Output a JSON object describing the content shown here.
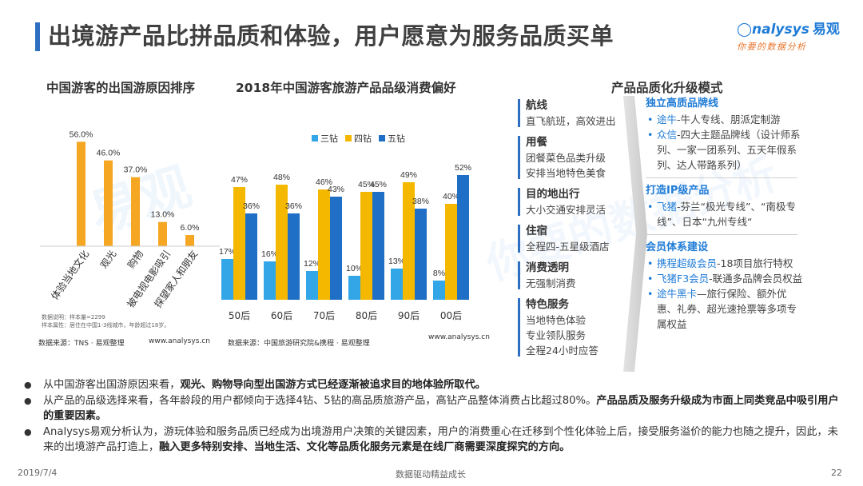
{
  "header": {
    "title": "出境游产品比拼品质和体验，用户愿意为服务品质买单",
    "logo_en": "nalysys",
    "logo_cn": "易观",
    "logo_sub": "你要的数据分析"
  },
  "sections": {
    "left_title": "中国游客的出国游原因排序",
    "middle_title": "2018年中国游客旅游产品品级消费偏好",
    "right_title": "产品品质化升级模式"
  },
  "colors": {
    "accent": "#2e6fc2",
    "bar_orange": "#f5a623",
    "bar_light_blue": "#33a6e8",
    "bar_gold": "#f5b800",
    "bar_dark_blue": "#1f6fc6"
  },
  "chart_data": [
    {
      "type": "bar",
      "title": "中国游客的出国游原因排序",
      "categories": [
        "体验当地文化",
        "观光",
        "购物",
        "被电视电影吸引",
        "探望家人和朋友"
      ],
      "values": [
        56.0,
        46.0,
        37.0,
        13.0,
        6.0
      ],
      "value_labels": [
        "56.0%",
        "46.0%",
        "37.0%",
        "13.0%",
        "6.0%"
      ],
      "ylim": [
        0,
        60
      ],
      "grid": false,
      "note_lines": [
        "数据说明：样本量=2299",
        "样本属性：居住在中国1-3线城市，年龄超过18岁。"
      ],
      "source": "数据来源：TNS · 易观整理",
      "site": "www.analysys.cn"
    },
    {
      "type": "bar",
      "title": "2018年中国游客旅游产品品级消费偏好",
      "categories": [
        "50后",
        "60后",
        "70后",
        "80后",
        "90后",
        "00后"
      ],
      "series": [
        {
          "name": "三钻",
          "values": [
            17,
            16,
            12,
            10,
            13,
            8
          ]
        },
        {
          "name": "四钻",
          "values": [
            47,
            48,
            46,
            45,
            49,
            40
          ]
        },
        {
          "name": "五钻",
          "values": [
            36,
            36,
            43,
            45,
            38,
            52
          ]
        }
      ],
      "ylim": [
        0,
        55
      ],
      "legend": "top",
      "grid": false,
      "source": "数据来源：中国旅游研究院&携程 · 易观整理",
      "site": "www.analysys.cn"
    }
  ],
  "middle_list": [
    {
      "head": "航线",
      "lines": [
        "直飞航班，高效进出"
      ]
    },
    {
      "head": "用餐",
      "lines": [
        "团餐菜色品类升级",
        "安排当地特色美食"
      ]
    },
    {
      "head": "目的地出行",
      "lines": [
        "大小交通安排灵活"
      ]
    },
    {
      "head": "住宿",
      "lines": [
        "全程四-五星级酒店"
      ]
    },
    {
      "head": "消费透明",
      "lines": [
        "无强制消费"
      ]
    },
    {
      "head": "特色服务",
      "lines": [
        "当地特色体验",
        "专业领队服务",
        "全程24小时应答"
      ]
    }
  ],
  "right_panel": {
    "groups": [
      {
        "head": "独立高质品牌线",
        "items": [
          {
            "hl": "途牛",
            "text": "-牛人专线、朋派定制游"
          },
          {
            "hl": "众信",
            "text": "-四大主题品牌线（设计师系列、一家一团系列、五天年假系列、达人带路系列）"
          }
        ]
      },
      {
        "head": "打造IP级产品",
        "items": [
          {
            "hl": "飞猪",
            "text": "-芬兰“极光专线”、“南极专线”、日本“九州专线“"
          }
        ]
      },
      {
        "head": "会员体系建设",
        "items": [
          {
            "hl": "携程超级会员",
            "text": "-18项目旅行特权"
          },
          {
            "hl": "飞猪F3会员",
            "text": "-联通多品牌会员权益"
          },
          {
            "hl": "途牛黑卡",
            "text": "—旅行保险、额外优惠、礼券、超光速抢票等多项专属权益"
          }
        ]
      }
    ]
  },
  "bullets": [
    {
      "plain": "从中国游客出国游原因来看，",
      "bold": "观光、购物导向型出国游方式已经逐渐被追求目的地体验所取代。",
      "tail": ""
    },
    {
      "plain": "从产品的品级选择来看，各年龄段的用户都倾向于选择4钻、5钻的高品质旅游产品，高钻产品整体消费占比超过80%。",
      "bold": "产品品质及服务升级成为市面上同类竞品中吸引用户的重要因素。",
      "tail": ""
    },
    {
      "plain": "Analysys易观分析认为，游玩体验和服务品质已经成为出境游用户决策的关键因素，用户的消费重心在迁移到个性化体验上后，接受服务溢价的能力也随之提升，因此，未来的出境游产品打造上，",
      "bold": "融入更多特别安排、当地生活、文化等品质化服务元素是在线厂商需要深度探究的方向。",
      "tail": ""
    }
  ],
  "footer": {
    "date": "2019/7/4",
    "slogan": "数据驱动精益成长",
    "page": "22"
  }
}
